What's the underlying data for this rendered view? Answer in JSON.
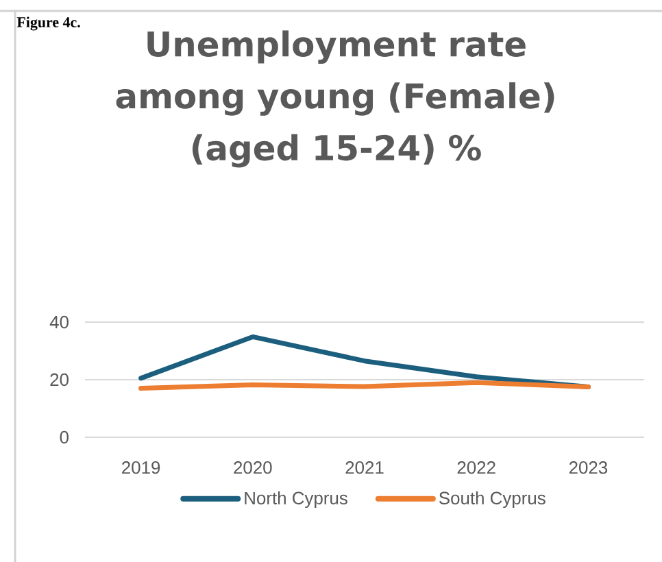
{
  "chart_data": {
    "type": "line",
    "title": "Unemployment rate among young (Female) (aged 15-24) %",
    "annotations": [
      "Figure 4c."
    ],
    "categories": [
      "2019",
      "2020",
      "2021",
      "2022",
      "2023"
    ],
    "series": [
      {
        "name": "North Cyprus",
        "color": "#1b5e7e",
        "values": [
          20.5,
          34.9,
          26.5,
          21,
          17.5
        ]
      },
      {
        "name": "South Cyprus",
        "color": "#ed7d31",
        "values": [
          17,
          18.2,
          17.6,
          19,
          17.5
        ]
      }
    ],
    "ylim": [
      0,
      40
    ],
    "yticks": [
      0,
      20,
      40
    ],
    "grid": "y",
    "legend": "bottom",
    "marker": "none",
    "line_style": "solid"
  }
}
